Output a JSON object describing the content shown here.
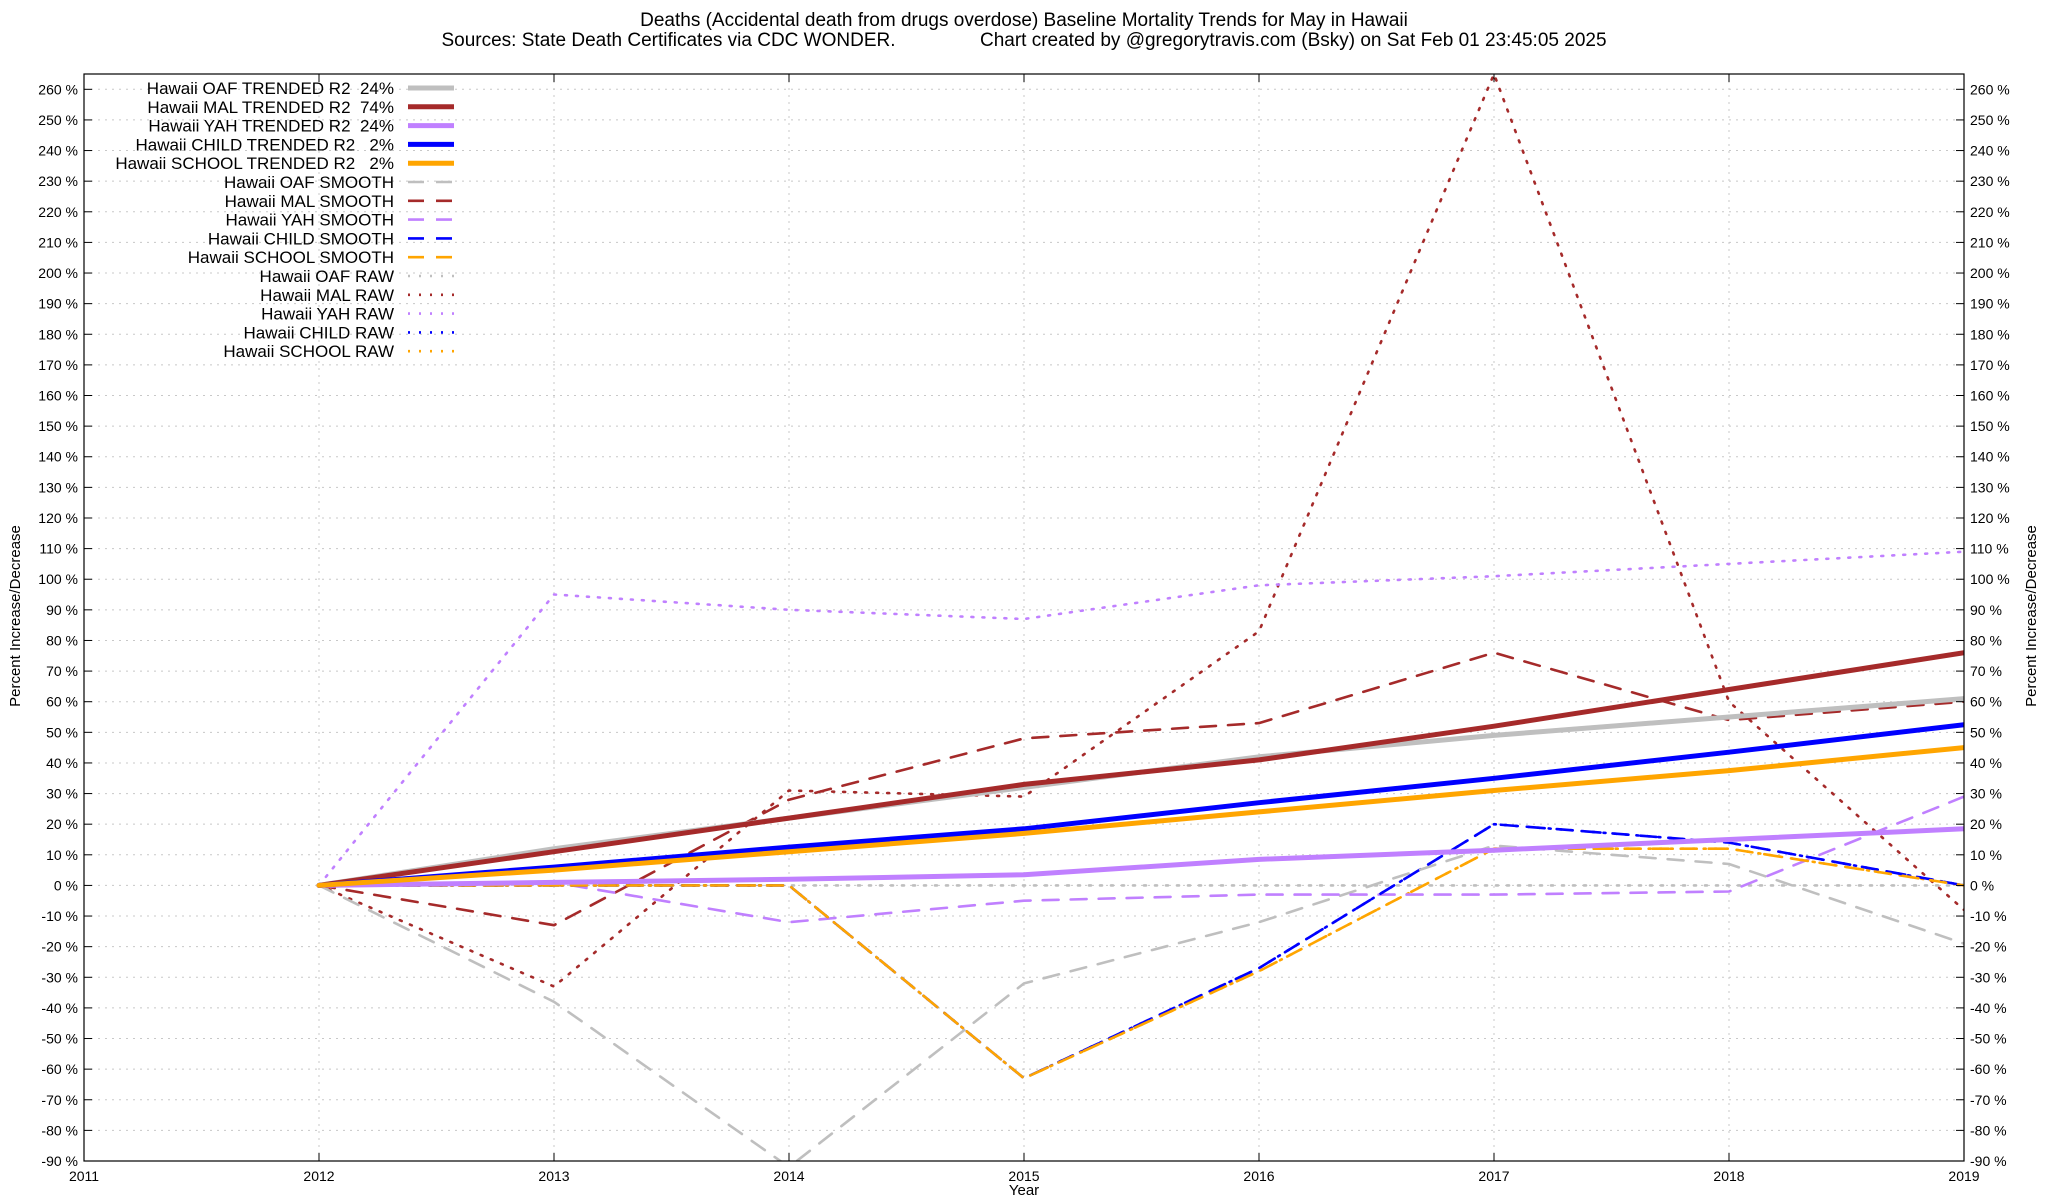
{
  "chart_data": {
    "type": "line",
    "title": "Deaths (Accidental death from drugs overdose)  Baseline Mortality Trends for May in Hawaii",
    "subtitle": "Sources: State Death Certificates via CDC WONDER.                Chart created by @gregorytravis.com (Bsky) on Sat Feb 01 23:45:05 2025",
    "xlabel": "Year",
    "ylabel": "Percent Increase/Decrease",
    "y2label": "Percent Increase/Decrease",
    "xlim": [
      2011,
      2019
    ],
    "ylim": [
      -90,
      265
    ],
    "x_ticks": [
      "2011",
      "2012",
      "2013",
      "2014",
      "2015",
      "2016",
      "2017",
      "2018",
      "2019"
    ],
    "y_ticks": [
      "260 %",
      "250 %",
      "240 %",
      "230 %",
      "220 %",
      "210 %",
      "200 %",
      "190 %",
      "180 %",
      "170 %",
      "160 %",
      "150 %",
      "140 %",
      "130 %",
      "120 %",
      "110 %",
      "100 %",
      "90 %",
      "80 %",
      "70 %",
      "60 %",
      "50 %",
      "40 %",
      "30 %",
      "20 %",
      "10 %",
      "0 %",
      "-10 %",
      "-20 %",
      "-30 %",
      "-40 %",
      "-50 %",
      "-60 %",
      "-70 %",
      "-80 %",
      "-90 %"
    ],
    "grid": true,
    "legend_position": "top-left",
    "series": [
      {
        "name": "Hawaii OAF TRENDED R2  24%",
        "style": "solid",
        "color": "#bfbfbf",
        "x": [
          2012,
          2013,
          2014,
          2015,
          2016,
          2017,
          2018,
          2019
        ],
        "values": [
          0,
          12,
          22,
          32,
          42,
          49,
          55,
          61
        ]
      },
      {
        "name": "Hawaii MAL TRENDED R2  74%",
        "style": "solid",
        "color": "#a52a2a",
        "x": [
          2012,
          2013,
          2014,
          2015,
          2016,
          2017,
          2018,
          2019
        ],
        "values": [
          0,
          11,
          22,
          33,
          41,
          52,
          64,
          76
        ]
      },
      {
        "name": "Hawaii YAH TRENDED R2  24%",
        "style": "solid",
        "color": "#c080ff",
        "x": [
          2012,
          2013,
          2014,
          2015,
          2016,
          2017,
          2018,
          2019
        ],
        "values": [
          0,
          1,
          2,
          3.5,
          8.5,
          11.5,
          15,
          18.5
        ]
      },
      {
        "name": "Hawaii CHILD TRENDED R2   2%",
        "style": "solid",
        "color": "#0000ff",
        "x": [
          2012,
          2013,
          2014,
          2015,
          2016,
          2017,
          2018,
          2019
        ],
        "values": [
          0,
          6,
          12.5,
          18.5,
          27,
          35,
          43.5,
          52.5
        ]
      },
      {
        "name": "Hawaii SCHOOL TRENDED R2   2%",
        "style": "solid",
        "color": "#ffa500",
        "x": [
          2012,
          2013,
          2014,
          2015,
          2016,
          2017,
          2018,
          2019
        ],
        "values": [
          0,
          5,
          11,
          17,
          24,
          31,
          37.5,
          45
        ]
      },
      {
        "name": "Hawaii OAF SMOOTH",
        "style": "dash",
        "color": "#bfbfbf",
        "x": [
          2012,
          2013,
          2014,
          2015,
          2016,
          2017,
          2018,
          2019
        ],
        "values": [
          0,
          -38,
          -92,
          -32,
          -12,
          13,
          7,
          -19
        ]
      },
      {
        "name": "Hawaii MAL SMOOTH",
        "style": "dash",
        "color": "#a52a2a",
        "x": [
          2012,
          2013,
          2014,
          2015,
          2016,
          2017,
          2018,
          2019
        ],
        "values": [
          0,
          -13,
          28,
          48,
          53,
          76,
          54,
          60
        ]
      },
      {
        "name": "Hawaii YAH SMOOTH",
        "style": "dash",
        "color": "#c080ff",
        "x": [
          2012,
          2013,
          2014,
          2015,
          2016,
          2017,
          2018,
          2019
        ],
        "values": [
          0,
          1,
          -12,
          -5,
          -3,
          -3,
          -2,
          29
        ]
      },
      {
        "name": "Hawaii CHILD SMOOTH",
        "style": "dash",
        "color": "#0000ff",
        "x": [
          2012,
          2013,
          2014,
          2015,
          2016,
          2017,
          2018,
          2019
        ],
        "values": [
          0,
          0,
          0,
          -63,
          -27,
          20,
          14,
          0
        ]
      },
      {
        "name": "Hawaii SCHOOL SMOOTH",
        "style": "dash",
        "color": "#ffa500",
        "x": [
          2012,
          2013,
          2014,
          2015,
          2016,
          2017,
          2018,
          2019
        ],
        "values": [
          0,
          0,
          0,
          -63,
          -28,
          12,
          12,
          0
        ]
      },
      {
        "name": "Hawaii OAF RAW",
        "style": "dot",
        "color": "#bfbfbf",
        "x": [
          2012,
          2013,
          2014,
          2015,
          2016,
          2017,
          2018,
          2019
        ],
        "values": [
          0,
          0,
          0,
          0,
          0,
          0,
          0,
          0
        ]
      },
      {
        "name": "Hawaii MAL RAW",
        "style": "dot",
        "color": "#a52a2a",
        "x": [
          2012,
          2013,
          2014,
          2015,
          2016,
          2017,
          2018,
          2019
        ],
        "values": [
          0,
          -33,
          31,
          29,
          83,
          265,
          60,
          -8
        ]
      },
      {
        "name": "Hawaii YAH RAW",
        "style": "dot",
        "color": "#c080ff",
        "x": [
          2012,
          2013,
          2014,
          2015,
          2016,
          2017,
          2018,
          2019
        ],
        "values": [
          0,
          95,
          90,
          87,
          98,
          101,
          105,
          109
        ]
      },
      {
        "name": "Hawaii CHILD RAW",
        "style": "dot",
        "color": "#0000ff",
        "x": [
          2012,
          2013,
          2014,
          2015,
          2016,
          2017,
          2018,
          2019
        ],
        "values": [
          0,
          0,
          0,
          -63,
          -27,
          20,
          14,
          0
        ]
      },
      {
        "name": "Hawaii SCHOOL RAW",
        "style": "dot",
        "color": "#ffa500",
        "x": [
          2012,
          2013,
          2014,
          2015,
          2016,
          2017,
          2018,
          2019
        ],
        "values": [
          0,
          0,
          0,
          -63,
          -28,
          12,
          12,
          0
        ]
      }
    ]
  }
}
